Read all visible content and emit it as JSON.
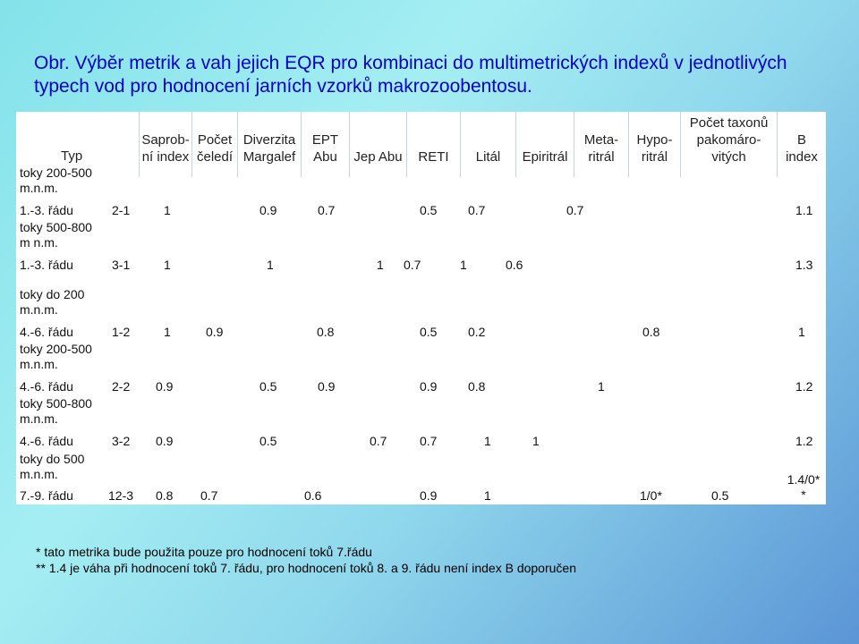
{
  "title": "Obr. Výběr metrik a vah jejich EQR pro kombinaci do multimetrických indexů v jednotlivých typech vod pro hodnocení jarních vzorků makrozoobentosu.",
  "table": {
    "headers": {
      "typ": "Typ",
      "saprob_1": "Saprob-",
      "saprob_2": "ní index",
      "pocet_1": "Počet",
      "pocet_2": "čeledí",
      "diverzita_1": "Diverzita",
      "diverzita_2": "Margalef",
      "ept_1": "EPT",
      "ept_2": "Abu",
      "jepabu": "Jep Abu",
      "reti": "RETI",
      "lital": "Litál",
      "epiritral": "Epiritrál",
      "meta_1": "Meta-",
      "meta_2": "ritrál",
      "hypo_1": "Hypo-",
      "hypo_2": "ritrál",
      "pakom_1": "Počet taxonů",
      "pakom_2": "pakomáro-",
      "pakom_3": "vitých",
      "b_1": "B",
      "b_2": "index"
    },
    "rows": [
      {
        "group_1": "toky 200-500",
        "group_2": "m.n.m.",
        "label": "1.-3. řádu",
        "code": "2-1",
        "values": {
          "saprob": "1",
          "diverzita": "0.9",
          "ept": "0.7",
          "reti": "0.5",
          "lital": "0.7",
          "meta": "0.7",
          "b": "1.1"
        }
      },
      {
        "group_1": "toky 500-800",
        "group_2": "m n.m.",
        "label": "1.-3. řádu",
        "code": "3-1",
        "values": {
          "saprob": "1",
          "diverzita": "1",
          "jep": "1",
          "reti": "0.7",
          "lital": "1",
          "epiritral": "0.6",
          "b": "1.3"
        }
      },
      {
        "group_1": "toky do 200",
        "group_2": "m.n.m.",
        "label": "4.-6. řádu",
        "code": "1-2",
        "values": {
          "saprob": "1",
          "pocet": "0.9",
          "jep": "0.8",
          "lital": "0.5",
          "epiritral": "0.2",
          "pakom": "0.8",
          "b": "1"
        }
      },
      {
        "group_1": "toky 200-500",
        "group_2": "m.n.m.",
        "label": "4.-6. řádu",
        "code": "2-2",
        "values": {
          "saprob": "0.9",
          "diverzita": "0.5",
          "ept": "0.9",
          "lital": "0.9",
          "epiritral": "0.8",
          "hypo": "1",
          "b": "1.2"
        }
      },
      {
        "group_1": "toky 500-800",
        "group_2": "m.n.m.",
        "label": "4.-6. řádu",
        "code": "3-2",
        "values": {
          "saprob": "0.9",
          "diverzita": "0.5",
          "reti": "0.7",
          "lital": "0.7",
          "epiritral": "1",
          "meta": "1",
          "b": "1.2"
        }
      },
      {
        "group_1": "toky do 500",
        "group_2": "m.n.m.",
        "label": "7.-9. řádu",
        "code": "12-3",
        "values": {
          "saprob": "0.8",
          "pocet": "0.7",
          "jep": "0.6",
          "lital": "0.9",
          "epiritral": "1",
          "hypo": "1/0*",
          "pakom": "0.5",
          "b_1": "1.4/0*",
          "b_2": "*"
        }
      }
    ]
  },
  "notes": {
    "n1": "* tato metrika bude použita pouze pro hodnocení toků 7.řádu",
    "n2": "** 1.4 je váha při hodnocení toků 7. řádu, pro hodnocení toků 8. a 9. řádu není index B doporučen"
  },
  "colors": {
    "title": "#0000cc",
    "panel": "#ffffff"
  }
}
